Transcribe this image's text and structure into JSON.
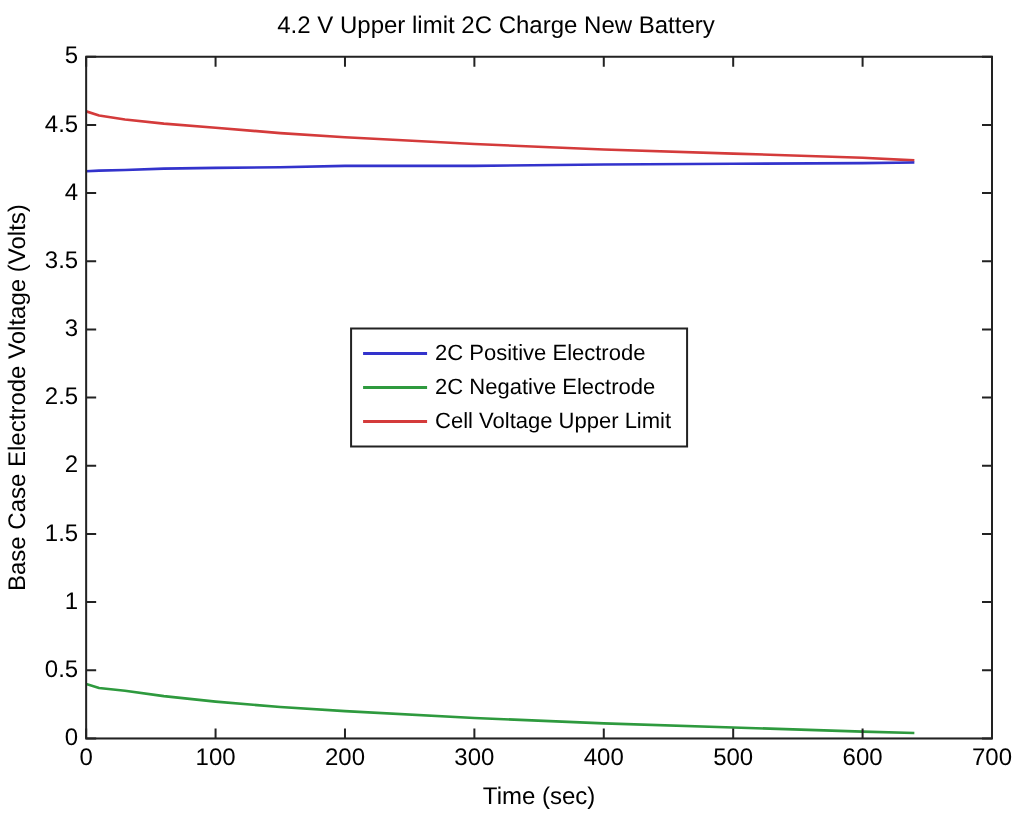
{
  "chart_data": {
    "type": "line",
    "title": "4.2 V Upper limit 2C Charge New Battery",
    "xlabel": "Time (sec)",
    "ylabel": "Base Case Electrode Voltage (Volts)",
    "x": [
      0,
      10,
      30,
      60,
      100,
      150,
      200,
      300,
      400,
      500,
      600,
      640
    ],
    "series": [
      {
        "name": "2C Positive Electrode",
        "color": "#3333cc",
        "values": [
          4.16,
          4.165,
          4.17,
          4.18,
          4.185,
          4.19,
          4.2,
          4.2,
          4.21,
          4.215,
          4.22,
          4.225
        ]
      },
      {
        "name": "2C Negative Electrode",
        "color": "#2e9a3e",
        "values": [
          0.4,
          0.37,
          0.35,
          0.31,
          0.27,
          0.23,
          0.2,
          0.15,
          0.11,
          0.08,
          0.05,
          0.04
        ]
      },
      {
        "name": "Cell Voltage Upper Limit",
        "color": "#d43b3b",
        "values": [
          4.6,
          4.57,
          4.54,
          4.51,
          4.48,
          4.44,
          4.41,
          4.36,
          4.32,
          4.29,
          4.26,
          4.24
        ]
      }
    ],
    "xlim": [
      0,
      700
    ],
    "xticks": [
      0,
      100,
      200,
      300,
      400,
      500,
      600,
      700
    ],
    "ylim": [
      0,
      5
    ],
    "yticks": [
      0,
      0.5,
      1,
      1.5,
      2,
      2.5,
      3,
      3.5,
      4,
      4.5,
      5
    ],
    "grid": false,
    "legend": "center",
    "marker": "none",
    "line_style": "solid"
  }
}
